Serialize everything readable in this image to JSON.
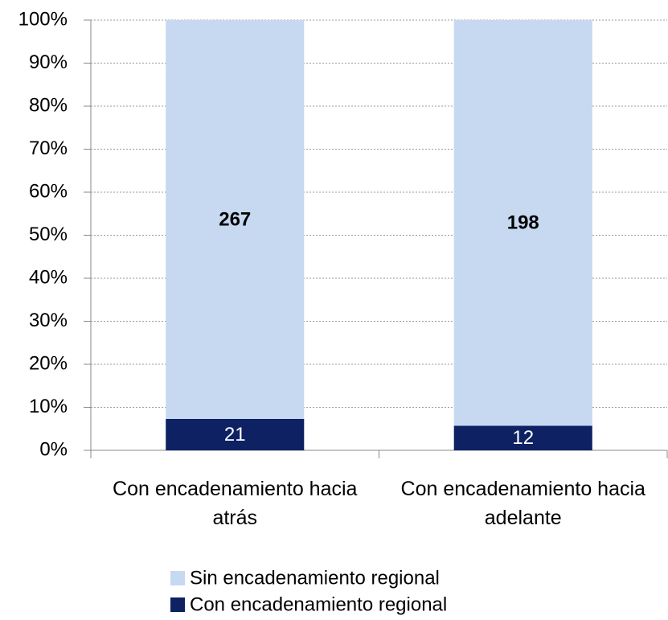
{
  "chart_data": {
    "type": "bar",
    "stack": "percent",
    "categories": [
      "Con encadenamiento hacia atrás",
      "Con encadenamiento hacia adelante"
    ],
    "series": [
      {
        "name": "Con encadenamiento regional",
        "color": "#0d2163",
        "label_color": "#ffffff",
        "label_bold": false,
        "values": [
          21,
          12
        ]
      },
      {
        "name": "Sin encadenamiento regional",
        "color": "#c6d9f1",
        "label_color": "#000000",
        "label_bold": true,
        "values": [
          267,
          198
        ]
      }
    ],
    "ylim": [
      0,
      100
    ],
    "yticks": [
      {
        "value": 0,
        "label": "0%"
      },
      {
        "value": 10,
        "label": "10%"
      },
      {
        "value": 20,
        "label": "20%"
      },
      {
        "value": 30,
        "label": "30%"
      },
      {
        "value": 40,
        "label": "40%"
      },
      {
        "value": 50,
        "label": "50%"
      },
      {
        "value": 60,
        "label": "60%"
      },
      {
        "value": 70,
        "label": "70%"
      },
      {
        "value": 80,
        "label": "80%"
      },
      {
        "value": 90,
        "label": "90%"
      },
      {
        "value": 100,
        "label": "100%"
      }
    ],
    "grid": true
  }
}
